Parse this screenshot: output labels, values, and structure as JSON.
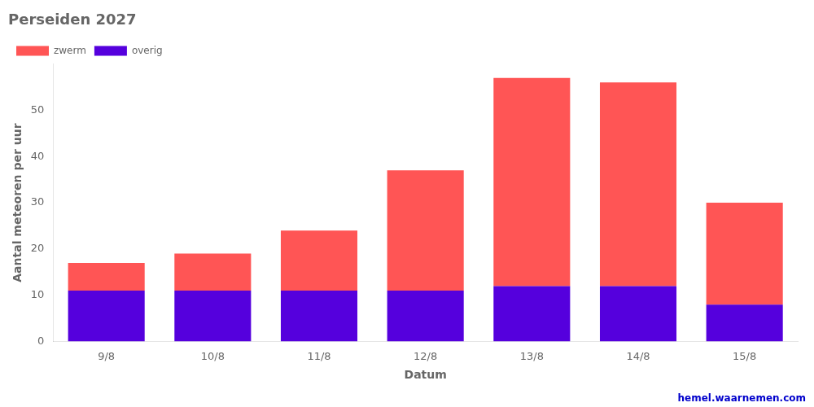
{
  "chart_data": {
    "type": "bar",
    "title": "Perseiden 2027",
    "xlabel": "Datum",
    "ylabel": "Aantal meteoren per uur",
    "categories": [
      "9/8",
      "10/8",
      "11/8",
      "12/8",
      "13/8",
      "14/8",
      "15/8"
    ],
    "series": [
      {
        "name": "overig",
        "color": "#5500dd",
        "values": [
          11,
          11,
          11,
          11,
          12,
          12,
          8
        ]
      },
      {
        "name": "zwerm",
        "color": "#ff5555",
        "values": [
          6,
          8,
          13,
          26,
          45,
          44,
          22
        ]
      }
    ],
    "stacked": true,
    "ylim": [
      0,
      60
    ],
    "yticks": [
      0,
      10,
      20,
      30,
      40,
      50
    ],
    "grid": false,
    "legend": "upper left",
    "annotations": [
      {
        "text": "hemel.waarnemen.com",
        "color": "#0000cc"
      }
    ]
  }
}
